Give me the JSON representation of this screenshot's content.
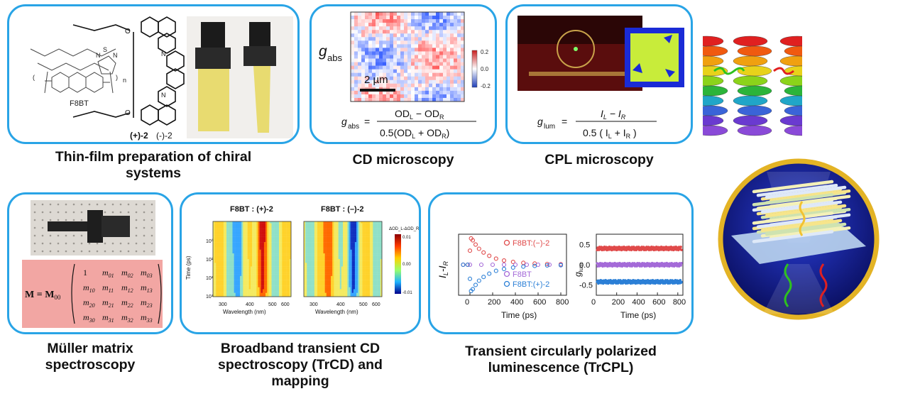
{
  "colors": {
    "panel_border": "#29a4e6",
    "matrix_bg": "#f2a6a3",
    "ring": "#e3b325"
  },
  "panels": {
    "thin_film": {
      "caption_line1": "Thin-film preparation of chiral",
      "caption_line2": "systems",
      "label_f8bt": "F8BT",
      "label_plus2": "(+)-2",
      "label_minus2": "(-)-2",
      "label_n": "n",
      "label_s": "S",
      "label_n1": "N",
      "label_n2": "N",
      "label_o1": "O",
      "label_o2": "O",
      "label_n3": "N",
      "label_n4": "N"
    },
    "cd_microscopy": {
      "caption": "CD microscopy",
      "g_label": "g",
      "g_sub": "abs",
      "colorbar_ticks": [
        "0.2",
        "0.0",
        "-0.2"
      ],
      "scale_bar": "2 µm",
      "eq_lhs": "g",
      "eq_lhs_sub": "abs",
      "eq_num": "OD",
      "eq_num_sub1": "L",
      "eq_num_mid": " − OD",
      "eq_num_sub2": "R",
      "eq_den_pre": "0.5(OD",
      "eq_den_sub1": "L",
      "eq_den_mid": " + OD",
      "eq_den_sub2": "R",
      "eq_den_post": ")"
    },
    "cpl_microscopy": {
      "caption": "CPL microscopy",
      "eq_lhs": "g",
      "eq_lhs_sub": "lum",
      "eq_num": "I",
      "eq_num_sub1": "L",
      "eq_num_mid": " − I",
      "eq_num_sub2": "R",
      "eq_den_pre": "0.5 ( I",
      "eq_den_sub1": "L",
      "eq_den_mid": " + I",
      "eq_den_sub2": "R",
      "eq_den_post": " )"
    },
    "muller": {
      "caption_line1": "Müller matrix",
      "caption_line2": "spectroscopy",
      "matrix_lhs": "M = M",
      "matrix_lhs_sub": "00",
      "rows": [
        [
          "1",
          "m01",
          "m02",
          "m03"
        ],
        [
          "m10",
          "m11",
          "m12",
          "m13"
        ],
        [
          "m20",
          "m21",
          "m22",
          "m23"
        ],
        [
          "m30",
          "m31",
          "m32",
          "m33"
        ]
      ]
    },
    "trcd": {
      "caption_line1": "Broadband transient CD",
      "caption_line2": "spectroscopy (TrCD) and",
      "caption_line3": "mapping",
      "map1_title": "F8BT : (+)-2",
      "map2_title": "F8BT : (–)-2",
      "ylabel": "Time (ps)",
      "xlabel1": "Wavelength (nm)",
      "xlabel2": "Wavelength (nm)",
      "colorbar_title": "ΔOD_L-ΔOD_R",
      "colorbar_ticks": [
        "0.01",
        "0.00",
        "-0.01"
      ],
      "yticks": [
        "10⁰",
        "10¹",
        "10²",
        "10³"
      ],
      "xticks": [
        "300",
        "400",
        "500",
        "600"
      ]
    },
    "trcpl": {
      "caption_line1": "Transient circularly polarized",
      "caption_line2": "luminescence (TrCPL)"
    }
  },
  "chart_data": [
    {
      "type": "scatter",
      "title": "",
      "xlabel": "Time (ps)",
      "ylabel": "I_L-I_R",
      "xlim": [
        -100,
        850
      ],
      "xticks": [
        0,
        200,
        400,
        600,
        800
      ],
      "series": [
        {
          "name": "F8BT:(−)-2",
          "color": "#e04a4a",
          "x": [
            -60,
            -20,
            0,
            10,
            25,
            50,
            80,
            120,
            170,
            230,
            300,
            380,
            470,
            570,
            680,
            800
          ],
          "y": [
            0,
            0,
            3,
            5.6,
            5.2,
            4.3,
            3.4,
            2.6,
            1.9,
            1.3,
            0.9,
            0.6,
            0.4,
            0.25,
            0.15,
            0.1
          ]
        },
        {
          "name": "F8BT",
          "color": "#a46ad8",
          "x": [
            -60,
            0,
            100,
            200,
            300,
            400,
            500,
            600,
            700,
            800
          ],
          "y": [
            0,
            0,
            0,
            0,
            0,
            0,
            0,
            0,
            0,
            0
          ]
        },
        {
          "name": "F8BT:(+)-2",
          "color": "#2b7fd6",
          "x": [
            -60,
            -20,
            0,
            10,
            25,
            50,
            80,
            120,
            170,
            230,
            300,
            380,
            470,
            570,
            680,
            800
          ],
          "y": [
            0,
            0,
            -3,
            -5.6,
            -5.2,
            -4.3,
            -3.4,
            -2.6,
            -1.9,
            -1.3,
            -0.9,
            -0.6,
            -0.4,
            -0.25,
            -0.15,
            -0.1
          ]
        }
      ]
    },
    {
      "type": "scatter",
      "title": "",
      "xlabel": "Time (ps)",
      "ylabel": "g_lum",
      "xlim": [
        0,
        850
      ],
      "ylim": [
        -0.75,
        0.75
      ],
      "xticks": [
        0,
        200,
        400,
        600,
        800
      ],
      "yticks": [
        0.5,
        0.0,
        -0.5
      ],
      "series": [
        {
          "name": "F8BT:(−)-2",
          "color": "#e04a4a",
          "x": [
            20,
            100,
            200,
            300,
            400,
            500,
            600,
            700,
            820
          ],
          "y": [
            0.4,
            0.4,
            0.4,
            0.4,
            0.4,
            0.4,
            0.4,
            0.4,
            0.4
          ]
        },
        {
          "name": "F8BT",
          "color": "#a46ad8",
          "x": [
            20,
            100,
            200,
            300,
            400,
            500,
            600,
            700,
            820
          ],
          "y": [
            0,
            0,
            0,
            0,
            0,
            0,
            0,
            0,
            0
          ]
        },
        {
          "name": "F8BT:(+)-2",
          "color": "#2b7fd6",
          "x": [
            20,
            100,
            200,
            300,
            400,
            500,
            600,
            700,
            820
          ],
          "y": [
            -0.42,
            -0.42,
            -0.42,
            -0.42,
            -0.42,
            -0.42,
            -0.42,
            -0.42,
            -0.42
          ]
        }
      ]
    }
  ],
  "legend": {
    "minus2": "F8BT:(−)-2",
    "f8bt": "F8BT",
    "plus2": "F8BT:(+)-2"
  },
  "axes1": {
    "ylabel": "I",
    "ylabel_sub": "L",
    "ylabel_mid": "-I",
    "ylabel_sub2": "R",
    "xlabel": "Time (ps)",
    "xticks": [
      "0",
      "200",
      "400",
      "600",
      "800"
    ]
  },
  "axes2": {
    "ylabel": "g",
    "ylabel_sub": "lum",
    "xlabel": "Time (ps)",
    "xticks": [
      "0",
      "200",
      "400",
      "600",
      "800"
    ],
    "yticks": [
      "0.5",
      "0.0",
      "-0.5"
    ]
  }
}
